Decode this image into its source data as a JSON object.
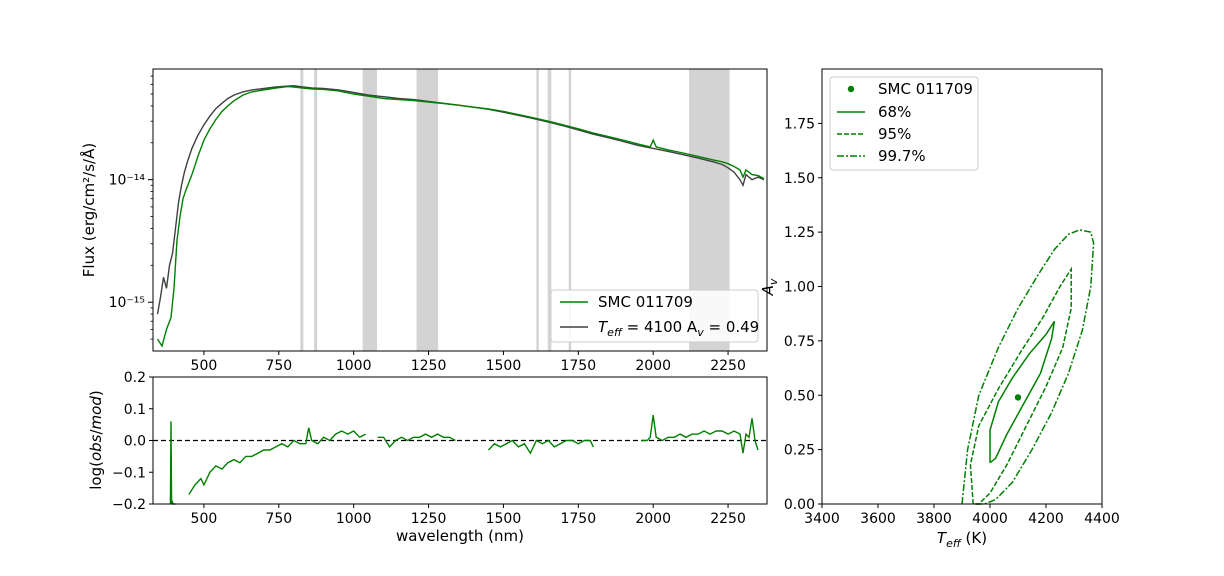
{
  "chart_data": [
    {
      "type": "line",
      "panel": "spectrum",
      "xlabel": "",
      "ylabel": "Flux (erg/cm²/s/Å)",
      "yscale": "log",
      "xlim": [
        330,
        2380
      ],
      "ylim": [
        4e-16,
        8e-14
      ],
      "xticks": [
        500,
        750,
        1000,
        1250,
        1500,
        1750,
        2000,
        2250
      ],
      "xtick_labels": [
        "500",
        "750",
        "1000",
        "1250",
        "1500",
        "1750",
        "2000",
        "2250"
      ],
      "yticks": [
        1e-15,
        1e-14
      ],
      "ytick_labels": [
        "10⁻¹⁵",
        "10⁻¹⁴"
      ],
      "masked_regions": [
        [
          822,
          832
        ],
        [
          868,
          878
        ],
        [
          1030,
          1078
        ],
        [
          1210,
          1282
        ],
        [
          1610,
          1618
        ],
        [
          1648,
          1660
        ],
        [
          1718,
          1726
        ],
        [
          2120,
          2255
        ]
      ],
      "series": [
        {
          "name": "SMC 011709",
          "color": "#008000",
          "x": [
            345,
            360,
            375,
            390,
            400,
            410,
            420,
            430,
            440,
            450,
            460,
            470,
            480,
            490,
            500,
            520,
            540,
            560,
            580,
            600,
            630,
            660,
            700,
            740,
            780,
            800,
            830,
            860,
            900,
            950,
            1000,
            1050,
            1100,
            1150,
            1200,
            1250,
            1300,
            1350,
            1400,
            1450,
            1500,
            1550,
            1600,
            1650,
            1700,
            1750,
            1800,
            1850,
            1900,
            1950,
            1990,
            2000,
            2010,
            2050,
            2100,
            2150,
            2200,
            2230,
            2250,
            2270,
            2290,
            2300,
            2310,
            2330,
            2350,
            2370
          ],
          "y": [
            5e-16,
            4.4e-16,
            6e-16,
            7.5e-16,
            1.3e-15,
            3.2e-15,
            5e-15,
            7e-15,
            8.2e-15,
            9.5e-15,
            1.1e-14,
            1.3e-14,
            1.55e-14,
            1.8e-14,
            2.1e-14,
            2.6e-14,
            3.1e-14,
            3.6e-14,
            4e-14,
            4.4e-14,
            4.9e-14,
            5.2e-14,
            5.4e-14,
            5.6e-14,
            5.75e-14,
            5.7e-14,
            5.6e-14,
            5.5e-14,
            5.45e-14,
            5.3e-14,
            5e-14,
            4.8e-14,
            4.6e-14,
            4.5e-14,
            4.42e-14,
            4.3e-14,
            4.18e-14,
            4.05e-14,
            3.9e-14,
            3.78e-14,
            3.6e-14,
            3.4e-14,
            3.2e-14,
            3e-14,
            2.8e-14,
            2.6e-14,
            2.4e-14,
            2.25e-14,
            2.1e-14,
            1.95e-14,
            1.85e-14,
            2.1e-14,
            1.85e-14,
            1.75e-14,
            1.65e-14,
            1.55e-14,
            1.45e-14,
            1.4e-14,
            1.35e-14,
            1.28e-14,
            1.2e-14,
            1.05e-14,
            1.2e-14,
            1.1e-14,
            1.08e-14,
            1.02e-14
          ]
        },
        {
          "name": "T_eff = 4100 A_v = 0.49",
          "color": "#404040",
          "x": [
            345,
            355,
            365,
            375,
            385,
            395,
            405,
            415,
            425,
            435,
            445,
            460,
            480,
            500,
            520,
            540,
            560,
            580,
            600,
            630,
            660,
            700,
            740,
            780,
            800,
            830,
            860,
            900,
            950,
            1000,
            1050,
            1100,
            1150,
            1200,
            1250,
            1300,
            1350,
            1400,
            1450,
            1500,
            1550,
            1600,
            1650,
            1700,
            1750,
            1800,
            1850,
            1900,
            1950,
            2000,
            2050,
            2100,
            2150,
            2200,
            2230,
            2250,
            2270,
            2290,
            2300,
            2310,
            2330,
            2350,
            2370
          ],
          "y": [
            8e-16,
            1.1e-15,
            1.6e-15,
            1.3e-15,
            2e-15,
            2.5e-15,
            4e-15,
            6.5e-15,
            9e-15,
            1.15e-14,
            1.4e-14,
            1.8e-14,
            2.3e-14,
            2.8e-14,
            3.3e-14,
            3.8e-14,
            4.2e-14,
            4.6e-14,
            4.9e-14,
            5.2e-14,
            5.4e-14,
            5.55e-14,
            5.7e-14,
            5.8e-14,
            5.85e-14,
            5.7e-14,
            5.6e-14,
            5.55e-14,
            5.4e-14,
            5.15e-14,
            4.9e-14,
            4.75e-14,
            4.6e-14,
            4.5e-14,
            4.35e-14,
            4.2e-14,
            4.05e-14,
            3.9e-14,
            3.75e-14,
            3.55e-14,
            3.35e-14,
            3.15e-14,
            2.95e-14,
            2.75e-14,
            2.55e-14,
            2.35e-14,
            2.2e-14,
            2.05e-14,
            1.9e-14,
            1.8e-14,
            1.7e-14,
            1.6e-14,
            1.5e-14,
            1.4e-14,
            1.33e-14,
            1.25e-14,
            1.15e-14,
            1e-14,
            9e-15,
            1.1e-14,
            1e-14,
            1.05e-14,
            1e-14
          ]
        }
      ],
      "legend": {
        "placement": "lower-right",
        "entries": [
          {
            "label": "SMC 011709",
            "color": "#008000"
          },
          {
            "label_main": "T",
            "label_sub": "eff",
            "label_rest": " = 4100 A",
            "label_sub2": "v",
            "label_end": " = 0.49",
            "color": "#404040"
          }
        ]
      }
    },
    {
      "type": "line",
      "panel": "residuals",
      "xlabel": "wavelength (nm)",
      "ylabel": "log(obs/mod)",
      "xlim": [
        330,
        2380
      ],
      "ylim": [
        -0.2,
        0.2
      ],
      "xticks": [
        500,
        750,
        1000,
        1250,
        1500,
        1750,
        2000,
        2250
      ],
      "xtick_labels": [
        "500",
        "750",
        "1000",
        "1250",
        "1500",
        "1750",
        "2000",
        "2250"
      ],
      "yticks": [
        -0.2,
        -0.1,
        0.0,
        0.1,
        0.2
      ],
      "ytick_labels": [
        "−0.2",
        "−0.1",
        "0.0",
        "0.1",
        "0.2"
      ],
      "reference_line": 0.0,
      "series": [
        {
          "name": "",
          "color": "#008000",
          "segments": [
            {
              "x": [
                388,
                390,
                392,
                394,
                396,
                400,
                405
              ],
              "y": [
                -0.2,
                0.06,
                -0.2,
                -0.19,
                -0.2,
                -0.2,
                -0.2
              ]
            },
            {
              "x": [
                450,
                470,
                490,
                500,
                520,
                540,
                560,
                580,
                600,
                620,
                640,
                660,
                680,
                700,
                720,
                740,
                760,
                780,
                800,
                820,
                840,
                850,
                860,
                880,
                900,
                920,
                940,
                960,
                980,
                1000,
                1020,
                1040
              ],
              "y": [
                -0.17,
                -0.14,
                -0.12,
                -0.14,
                -0.1,
                -0.08,
                -0.09,
                -0.07,
                -0.06,
                -0.07,
                -0.05,
                -0.05,
                -0.04,
                -0.03,
                -0.03,
                -0.02,
                -0.01,
                -0.02,
                0.0,
                -0.01,
                -0.01,
                0.04,
                0.0,
                -0.01,
                0.01,
                0.0,
                0.02,
                0.03,
                0.02,
                0.03,
                0.01,
                0.02
              ]
            },
            {
              "x": [
                1080,
                1100,
                1120,
                1140,
                1160,
                1180,
                1200,
                1220,
                1240,
                1260,
                1280,
                1300,
                1320,
                1340
              ],
              "y": [
                0.01,
                0.01,
                -0.02,
                0.0,
                0.01,
                0.0,
                0.01,
                0.01,
                0.02,
                0.01,
                0.02,
                0.01,
                0.01,
                0.0
              ]
            },
            {
              "x": [
                1450,
                1470,
                1490,
                1510,
                1530,
                1550,
                1570,
                1590,
                1610,
                1630,
                1650,
                1670,
                1690,
                1710,
                1730,
                1750,
                1770,
                1790,
                1800
              ],
              "y": [
                -0.03,
                -0.01,
                -0.02,
                -0.01,
                0.0,
                -0.02,
                -0.01,
                -0.04,
                0.0,
                -0.01,
                0.0,
                -0.02,
                -0.01,
                0.0,
                0.0,
                -0.01,
                0.0,
                0.0,
                -0.02
              ]
            },
            {
              "x": [
                1960,
                1980,
                1990,
                2000,
                2010,
                2030,
                2050,
                2070,
                2090,
                2110,
                2130,
                2150,
                2170,
                2190,
                2210,
                2230,
                2250,
                2270,
                2290,
                2300,
                2310,
                2320,
                2330,
                2340,
                2350
              ],
              "y": [
                0.0,
                0.0,
                0.01,
                0.08,
                0.01,
                0.0,
                0.01,
                0.01,
                0.02,
                0.01,
                0.02,
                0.02,
                0.03,
                0.02,
                0.03,
                0.03,
                0.02,
                0.03,
                0.02,
                -0.04,
                0.02,
                0.01,
                0.07,
                0.0,
                -0.03
              ]
            }
          ]
        }
      ]
    },
    {
      "type": "contour",
      "panel": "confidence",
      "xlabel_main": "T",
      "xlabel_sub": "eff",
      "xlabel_unit": " (K)",
      "ylabel_main": "A",
      "ylabel_sub": "v",
      "xlim": [
        3400,
        4400
      ],
      "ylim": [
        0.0,
        2.0
      ],
      "xticks": [
        3400,
        3600,
        3800,
        4000,
        4200,
        4400
      ],
      "xtick_labels": [
        "3400",
        "3600",
        "3800",
        "4000",
        "4200",
        "4400"
      ],
      "yticks": [
        0.0,
        0.25,
        0.5,
        0.75,
        1.0,
        1.25,
        1.5,
        1.75
      ],
      "ytick_labels": [
        "0.00",
        "0.25",
        "0.50",
        "0.75",
        "1.00",
        "1.25",
        "1.50",
        "1.75"
      ],
      "color": "#008000",
      "best_fit": {
        "x": 4100,
        "y": 0.49,
        "label": "SMC 011709"
      },
      "contours": [
        {
          "level": "68%",
          "style": "solid",
          "x": [
            4000,
            4000,
            4030,
            4080,
            4140,
            4200,
            4230,
            4220,
            4180,
            4120,
            4060,
            4020,
            4000
          ],
          "y": [
            0.19,
            0.34,
            0.47,
            0.58,
            0.69,
            0.78,
            0.84,
            0.76,
            0.6,
            0.46,
            0.32,
            0.21,
            0.19
          ]
        },
        {
          "level": "95%",
          "style": "dashed",
          "x": [
            3940,
            3930,
            3960,
            4030,
            4110,
            4190,
            4250,
            4290,
            4290,
            4260,
            4200,
            4130,
            4060,
            4000,
            3960,
            3940
          ],
          "y": [
            0.0,
            0.18,
            0.36,
            0.53,
            0.7,
            0.86,
            1.0,
            1.08,
            0.9,
            0.72,
            0.54,
            0.36,
            0.18,
            0.05,
            0.0,
            0.0
          ]
        },
        {
          "level": "99.7%",
          "style": "dashdot",
          "x": [
            3900,
            3920,
            3960,
            4030,
            4100,
            4170,
            4230,
            4280,
            4320,
            4360,
            4370,
            4360,
            4330,
            4280,
            4220,
            4150,
            4080,
            4020,
            3980,
            3950
          ],
          "y": [
            0.0,
            0.25,
            0.5,
            0.72,
            0.9,
            1.05,
            1.17,
            1.24,
            1.26,
            1.25,
            1.2,
            1.0,
            0.8,
            0.6,
            0.42,
            0.25,
            0.1,
            0.02,
            0.0,
            0.0
          ]
        }
      ],
      "legend": {
        "placement": "upper-left",
        "entries": [
          {
            "label": "SMC 011709",
            "style": "marker"
          },
          {
            "label": "68%",
            "style": "solid"
          },
          {
            "label": "95%",
            "style": "dashed"
          },
          {
            "label": "99.7%",
            "style": "dashdot"
          }
        ]
      }
    }
  ]
}
